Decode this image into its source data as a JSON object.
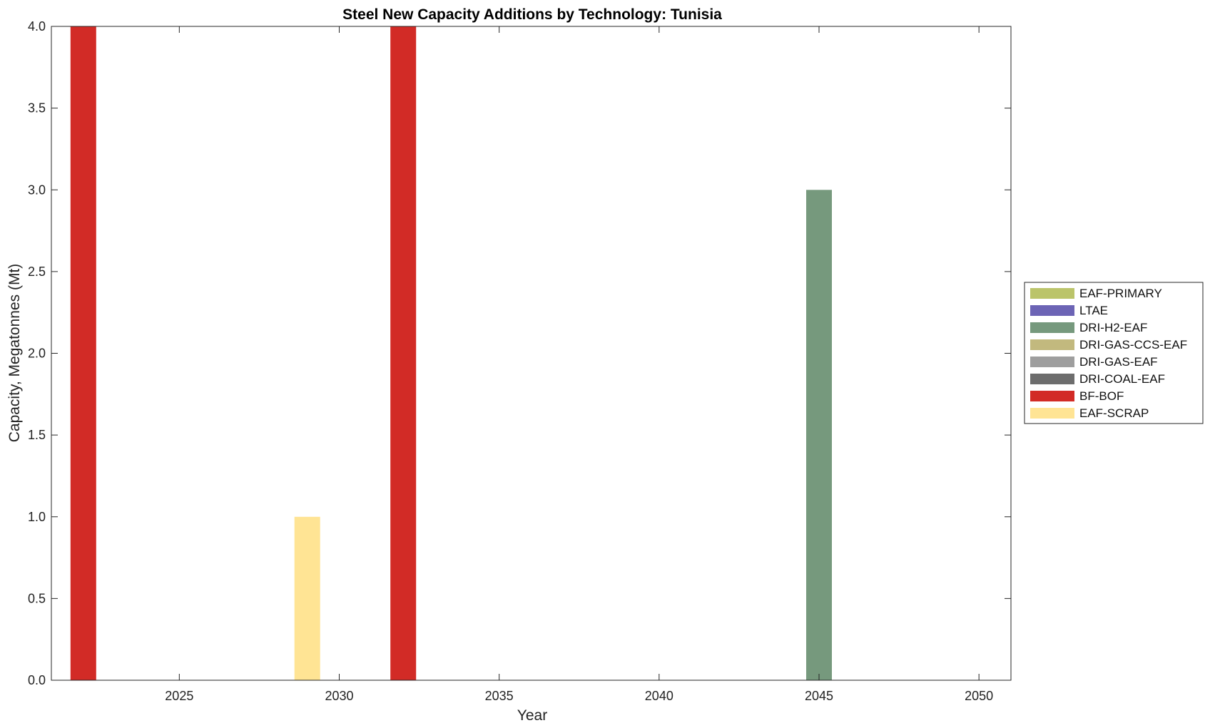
{
  "chart_data": {
    "type": "bar",
    "title": "Steel New Capacity Additions by Technology: Tunisia",
    "xlabel": "Year",
    "ylabel": "Capacity, Megatonnes (Mt)",
    "xlim": [
      2021,
      2051
    ],
    "ylim": [
      0,
      4
    ],
    "xticks": [
      2025,
      2030,
      2035,
      2040,
      2045,
      2050
    ],
    "yticks": [
      0,
      0.5,
      1,
      1.5,
      2,
      2.5,
      3,
      3.5,
      4
    ],
    "ytick_labels": [
      "0.0",
      "0.5",
      "1.0",
      "1.5",
      "2.0",
      "2.5",
      "3.0",
      "3.5",
      "4.0"
    ],
    "legend_position": "right",
    "grid": false,
    "stacked": true,
    "series": [
      {
        "name": "EAF-PRIMARY",
        "color": "#BBC46A",
        "points": []
      },
      {
        "name": "LTAE",
        "color": "#6C64B5",
        "points": []
      },
      {
        "name": "DRI-H2-EAF",
        "color": "#76997D",
        "points": [
          {
            "x": 2045,
            "y": 3.0
          }
        ]
      },
      {
        "name": "DRI-GAS-CCS-EAF",
        "color": "#C2B97E",
        "points": []
      },
      {
        "name": "DRI-GAS-EAF",
        "color": "#9E9E9E",
        "points": []
      },
      {
        "name": "DRI-COAL-EAF",
        "color": "#6D6D6D",
        "points": []
      },
      {
        "name": "BF-BOF",
        "color": "#D22B26",
        "points": [
          {
            "x": 2022,
            "y": 4.0
          },
          {
            "x": 2032,
            "y": 4.0
          }
        ]
      },
      {
        "name": "EAF-SCRAP",
        "color": "#FFE494",
        "points": [
          {
            "x": 2029,
            "y": 1.0
          }
        ]
      }
    ]
  }
}
